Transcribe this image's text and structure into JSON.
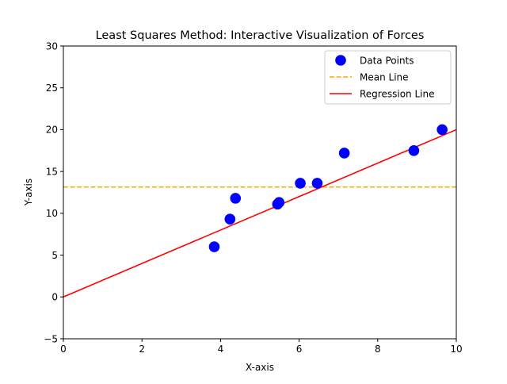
{
  "chart_data": {
    "type": "scatter",
    "title": "Least Squares Method: Interactive Visualization of Forces",
    "xlabel": "X-axis",
    "ylabel": "Y-axis",
    "xlim": [
      0,
      10
    ],
    "ylim": [
      -5,
      30
    ],
    "xticks": [
      "0",
      "2",
      "4",
      "6",
      "8",
      "10"
    ],
    "yticks": [
      "−5",
      "0",
      "5",
      "10",
      "15",
      "20",
      "25",
      "30"
    ],
    "grid": false,
    "legend_position": "top-right",
    "series": [
      {
        "name": "Data Points",
        "kind": "scatter",
        "color": "#0000ff",
        "x": [
          3.84,
          4.24,
          4.38,
          5.45,
          5.49,
          6.03,
          6.46,
          7.15,
          8.92,
          9.64
        ],
        "y": [
          6.0,
          9.3,
          11.8,
          11.1,
          11.3,
          13.6,
          13.6,
          17.2,
          17.5,
          20.0
        ]
      },
      {
        "name": "Mean Line",
        "kind": "hline",
        "color": "#ffa500",
        "style": "dashed",
        "y": 13.14
      },
      {
        "name": "Regression Line",
        "kind": "line",
        "color": "#ff0000",
        "x": [
          0,
          10
        ],
        "y": [
          0.0,
          20.0
        ]
      }
    ]
  }
}
